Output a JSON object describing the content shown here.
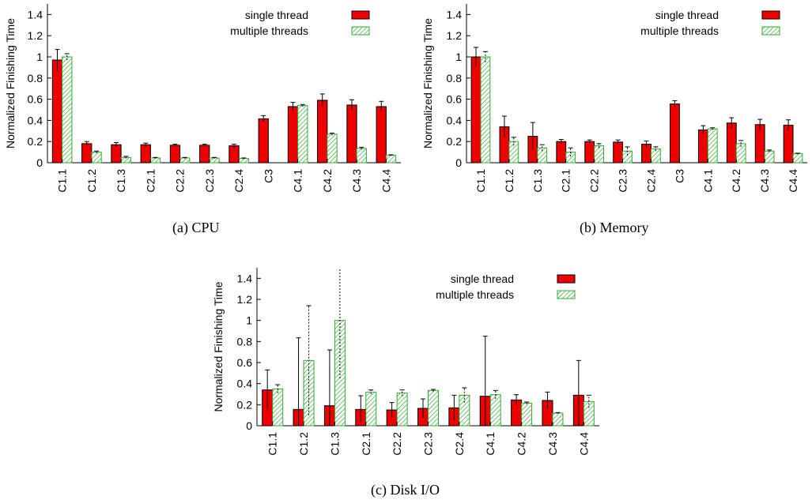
{
  "figure": {
    "captions": [
      "(a) CPU",
      "(b) Memory",
      "(c) Disk I/O"
    ]
  },
  "colors": {
    "single": "#ee0000",
    "multi_stroke": "#33aa33",
    "multi_fill": "#ffffff"
  },
  "chart_data": [
    {
      "type": "bar",
      "title": "",
      "ylabel": "Normalized Finishing Time",
      "ylim": [
        0,
        1.5
      ],
      "yticks": [
        0,
        0.2,
        0.4,
        0.6,
        0.8,
        1,
        1.2,
        1.4
      ],
      "legend": "top-right",
      "categories": [
        "C1.1",
        "C1.2",
        "C1.3",
        "C2.1",
        "C2.2",
        "C2.3",
        "C2.4",
        "C3",
        "C4.1",
        "C4.2",
        "C4.3",
        "C4.4"
      ],
      "series": [
        {
          "name": "single thread",
          "values": [
            0.97,
            0.18,
            0.17,
            0.17,
            0.165,
            0.165,
            0.16,
            0.415,
            0.53,
            0.59,
            0.545,
            0.53
          ],
          "errors": [
            0.1,
            0.02,
            0.02,
            0.015,
            0.01,
            0.01,
            0.015,
            0.03,
            0.04,
            0.06,
            0.05,
            0.05
          ]
        },
        {
          "name": "multiple threads",
          "values": [
            1.0,
            0.1,
            0.05,
            0.045,
            0.045,
            0.045,
            0.04,
            null,
            0.54,
            0.27,
            0.135,
            0.07
          ],
          "errors": [
            0.03,
            0.01,
            0.01,
            0.005,
            0.005,
            0.005,
            0.005,
            null,
            0.01,
            0.01,
            0.01,
            0.005
          ]
        }
      ]
    },
    {
      "type": "bar",
      "title": "",
      "ylabel": "Normalized Finishing Time",
      "ylim": [
        0,
        1.5
      ],
      "yticks": [
        0,
        0.2,
        0.4,
        0.6,
        0.8,
        1,
        1.2,
        1.4
      ],
      "legend": "top-right",
      "categories": [
        "C1.1",
        "C1.2",
        "C1.3",
        "C2.1",
        "C2.2",
        "C2.3",
        "C2.4",
        "C3",
        "C4.1",
        "C4.2",
        "C4.3",
        "C4.4"
      ],
      "series": [
        {
          "name": "single thread",
          "values": [
            1.0,
            0.34,
            0.25,
            0.2,
            0.2,
            0.195,
            0.175,
            0.555,
            0.31,
            0.375,
            0.36,
            0.355
          ],
          "errors": [
            0.09,
            0.1,
            0.13,
            0.02,
            0.015,
            0.02,
            0.03,
            0.03,
            0.04,
            0.05,
            0.05,
            0.05
          ]
        },
        {
          "name": "multiple threads",
          "values": [
            1.0,
            0.2,
            0.14,
            0.1,
            0.16,
            0.11,
            0.13,
            null,
            0.32,
            0.18,
            0.11,
            0.085
          ],
          "errors": [
            0.05,
            0.04,
            0.03,
            0.04,
            0.02,
            0.04,
            0.02,
            null,
            0.01,
            0.03,
            0.01,
            0.005
          ]
        }
      ]
    },
    {
      "type": "bar",
      "title": "",
      "ylabel": "Normalized Finishing Time",
      "ylim": [
        0,
        1.5
      ],
      "yticks": [
        0,
        0.2,
        0.4,
        0.6,
        0.8,
        1,
        1.2,
        1.4
      ],
      "legend": "top-right",
      "categories": [
        "C1.1",
        "C1.2",
        "C1.3",
        "C2.1",
        "C2.2",
        "C2.3",
        "C2.4",
        "C4.1",
        "C4.2",
        "C4.3",
        "C4.4"
      ],
      "series": [
        {
          "name": "single thread",
          "values": [
            0.34,
            0.155,
            0.19,
            0.155,
            0.15,
            0.165,
            0.17,
            0.28,
            0.245,
            0.24,
            0.29
          ],
          "errors": [
            0.19,
            0.68,
            0.53,
            0.13,
            0.07,
            0.09,
            0.12,
            0.57,
            0.05,
            0.08,
            0.33
          ]
        },
        {
          "name": "multiple threads",
          "values": [
            0.35,
            0.62,
            1.0,
            0.32,
            0.31,
            0.335,
            0.29,
            0.295,
            0.215,
            0.12,
            0.23
          ],
          "errors": [
            0.04,
            0.52,
            0.55,
            0.02,
            0.03,
            0.01,
            0.07,
            0.04,
            0.01,
            0.005,
            0.06
          ]
        }
      ]
    }
  ]
}
